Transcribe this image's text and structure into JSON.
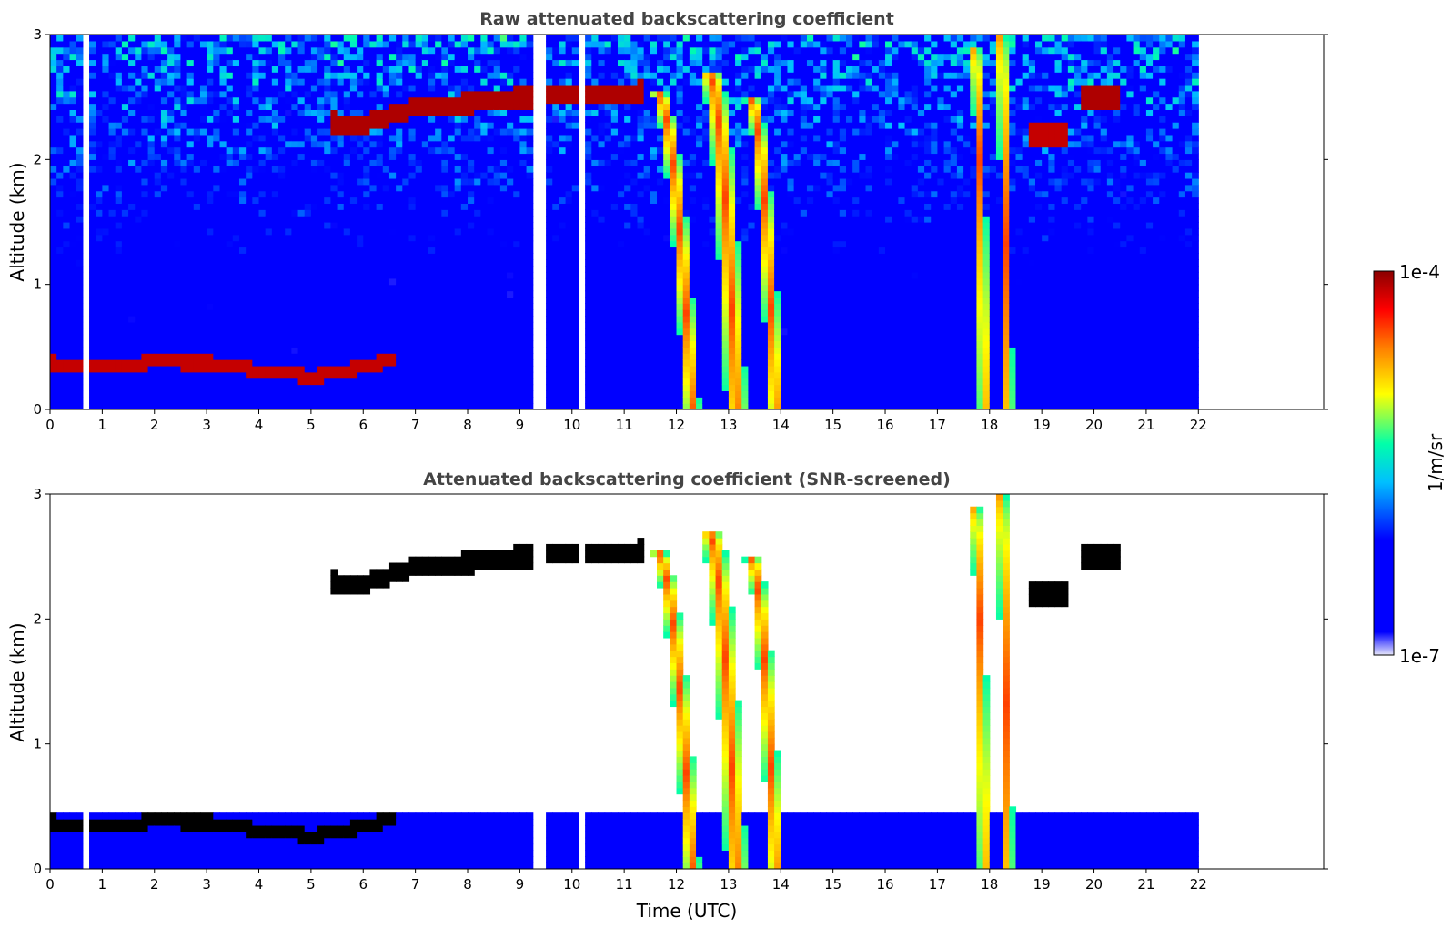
{
  "colors": {
    "background": "#ffffff",
    "title_text": "#444444",
    "colormap": [
      "#e6e6fa",
      "#0000ff",
      "#00bfff",
      "#00ffaa",
      "#ffff00",
      "#ff7f00",
      "#ff0000",
      "#8b0000"
    ],
    "screened_saturation": "#000000"
  },
  "colorbar": {
    "label": "1/m/sr",
    "max_label": "1e-4",
    "min_label": "1e-7",
    "scale": "log",
    "range": [
      1e-07,
      0.0001
    ]
  },
  "chart_data": [
    {
      "type": "heatmap",
      "title": "Raw attenuated backscattering coefficient",
      "xlabel": "",
      "ylabel": "Altitude (km)",
      "xlim": [
        0,
        24.4
      ],
      "ylim": [
        0,
        3
      ],
      "x_ticks": [
        "0",
        "1",
        "2",
        "3",
        "4",
        "5",
        "6",
        "7",
        "8",
        "9",
        "10",
        "11",
        "12",
        "13",
        "14",
        "15",
        "16",
        "17",
        "18",
        "19",
        "20",
        "21",
        "22"
      ],
      "y_ticks": [
        "0",
        "1",
        "2",
        "3"
      ],
      "data_extent_x": [
        0,
        22
      ],
      "colorbar": "1/m/sr, log 1e-7 to 1e-4",
      "screened": false,
      "gaps_x": [
        0.7,
        9.3,
        9.45,
        10.15
      ],
      "features": [
        {
          "name": "boundary layer top",
          "x": [
            0,
            1,
            2,
            3,
            4,
            5,
            6,
            6.5
          ],
          "y": [
            0.37,
            0.33,
            0.38,
            0.37,
            0.31,
            0.26,
            0.33,
            0.4
          ]
        },
        {
          "name": "elevated layer",
          "x": [
            5.4,
            6,
            7,
            8,
            9,
            10,
            11,
            11.3
          ],
          "y": [
            2.3,
            2.28,
            2.42,
            2.45,
            2.5,
            2.52,
            2.52,
            2.55
          ]
        },
        {
          "name": "precipitation streak",
          "x": [
            12.2,
            13.1,
            13.9,
            17.9,
            18.3
          ],
          "y": [
            2.3,
            2.6,
            2.4,
            2.8,
            2.9
          ]
        }
      ]
    },
    {
      "type": "heatmap",
      "title": "Attenuated backscattering coefficient (SNR-screened)",
      "xlabel": "Time (UTC)",
      "ylabel": "Altitude (km)",
      "xlim": [
        0,
        24.4
      ],
      "ylim": [
        0,
        3
      ],
      "x_ticks": [
        "0",
        "1",
        "2",
        "3",
        "4",
        "5",
        "6",
        "7",
        "8",
        "9",
        "10",
        "11",
        "12",
        "13",
        "14",
        "15",
        "16",
        "17",
        "18",
        "19",
        "20",
        "21",
        "22"
      ],
      "y_ticks": [
        "0",
        "1",
        "2",
        "3"
      ],
      "data_extent_x": [
        0,
        22
      ],
      "colorbar": "1/m/sr, log 1e-7 to 1e-4",
      "screened": true,
      "gaps_x": [
        0.7,
        9.3,
        9.45,
        10.15
      ]
    }
  ]
}
